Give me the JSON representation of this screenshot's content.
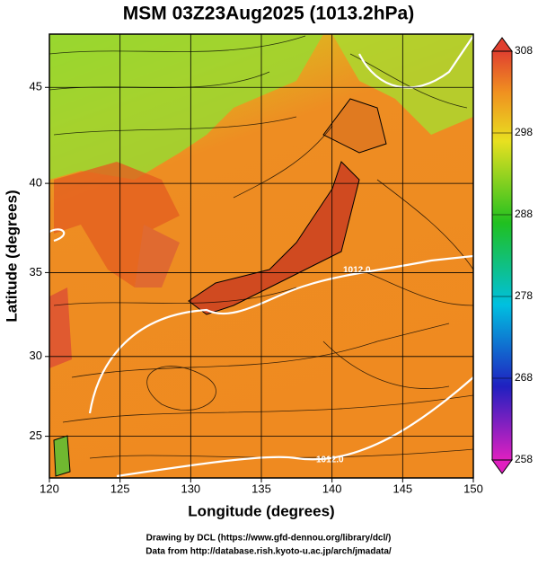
{
  "title": "MSM 03Z23Aug2025 (1013.2hPa)",
  "xaxis": {
    "label": "Longitude (degrees)",
    "lim": [
      120,
      150
    ],
    "ticks": [
      120,
      125,
      130,
      135,
      140,
      145,
      150
    ]
  },
  "yaxis": {
    "label": "Latitude  (degrees)",
    "lim": [
      22.3,
      47.6
    ],
    "ticks": [
      25,
      30,
      35,
      40,
      45
    ]
  },
  "colorbar": {
    "lim": [
      258,
      308
    ],
    "ticks": [
      258,
      268,
      278,
      288,
      298,
      308
    ]
  },
  "contour_labels": [
    "1012.0",
    "1012.0"
  ],
  "footer": [
    "Drawing by DCL (https://www.gfd-dennou.org/library/dcl/)",
    "Data from http://database.rish.kyoto-u.ac.jp/arch/jmadata/"
  ]
}
